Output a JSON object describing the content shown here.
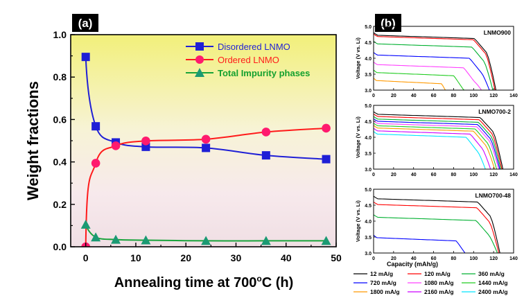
{
  "chart_data": [
    {
      "panel_label": "(a)",
      "type": "line",
      "title": "",
      "xlabel": "Annealing time at 700°C (h)",
      "xlabel_parts": [
        "Annealing time at 700",
        "o",
        "C (h)"
      ],
      "ylabel": "Weight fractions",
      "xlim": [
        -3,
        50
      ],
      "ylim": [
        0,
        1.0
      ],
      "xticks": [
        "0",
        "10",
        "20",
        "30",
        "40",
        "50"
      ],
      "yticks": [
        "0.0",
        "0.2",
        "0.4",
        "0.6",
        "0.8",
        "1.0"
      ],
      "legend_position": "top-right",
      "series": [
        {
          "name": "Disordered LNMO",
          "color": "#1f1fd6",
          "marker": "square",
          "x": [
            0,
            2,
            6,
            12,
            24,
            36,
            48
          ],
          "values": [
            0.895,
            0.568,
            0.492,
            0.471,
            0.466,
            0.431,
            0.413
          ]
        },
        {
          "name": "Ordered LNMO",
          "color": "#ff1a1a",
          "marker": "circle",
          "x": [
            0,
            2,
            6,
            12,
            24,
            36,
            48
          ],
          "values": [
            0.0,
            0.394,
            0.476,
            0.499,
            0.507,
            0.541,
            0.559
          ]
        },
        {
          "name": "Total Impurity phases",
          "color": "#1b9a73",
          "marker": "triangle",
          "x": [
            0,
            2,
            6,
            12,
            24,
            36,
            48
          ],
          "values": [
            0.105,
            0.045,
            0.034,
            0.031,
            0.028,
            0.028,
            0.028
          ]
        }
      ]
    },
    {
      "panel_label": "(b)",
      "type": "line",
      "xlabel": "Capacity (mAh/g)",
      "ylabel": "Voltage (V vs. Li)",
      "xlim": [
        0,
        140
      ],
      "ylim": [
        3.0,
        5.0
      ],
      "xticks": [
        "0",
        "20",
        "40",
        "60",
        "80",
        "100",
        "120",
        "140"
      ],
      "yticks": [
        "3.0",
        "3.5",
        "4.0",
        "4.5",
        "5.0"
      ],
      "legend": [
        {
          "label": "12 mA/g",
          "color": "#000000"
        },
        {
          "label": "120 mA/g",
          "color": "#ff0000"
        },
        {
          "label": "360 mA/g",
          "color": "#00b030"
        },
        {
          "label": "720 mA/g",
          "color": "#0000ff"
        },
        {
          "label": "1080 mA/g",
          "color": "#ff40ff"
        },
        {
          "label": "1440 mA/g",
          "color": "#22cc22"
        },
        {
          "label": "1800 mA/g",
          "color": "#ff9900"
        },
        {
          "label": "2160 mA/g",
          "color": "#cc00ff"
        },
        {
          "label": "2400 mA/g",
          "color": "#00e5ff"
        }
      ],
      "subplots": [
        {
          "name": "LNMO900",
          "curves": [
            {
              "color": "#000000",
              "plateau": 4.72,
              "endCap": 123
            },
            {
              "color": "#ff0000",
              "plateau": 4.68,
              "endCap": 122
            },
            {
              "color": "#00b030",
              "plateau": 4.45,
              "endCap": 120
            },
            {
              "color": "#0000ff",
              "plateau": 4.1,
              "endCap": 117
            },
            {
              "color": "#ff40ff",
              "plateau": 3.8,
              "endCap": 110
            },
            {
              "color": "#22cc22",
              "plateau": 3.55,
              "endCap": 98
            },
            {
              "color": "#ff9900",
              "plateau": 3.3,
              "endCap": 83
            }
          ]
        },
        {
          "name": "LNMO700-2",
          "curves": [
            {
              "color": "#000000",
              "plateau": 4.72,
              "endCap": 130
            },
            {
              "color": "#ff0000",
              "plateau": 4.65,
              "endCap": 129
            },
            {
              "color": "#00b030",
              "plateau": 4.57,
              "endCap": 128
            },
            {
              "color": "#0000ff",
              "plateau": 4.5,
              "endCap": 127
            },
            {
              "color": "#ff40ff",
              "plateau": 4.43,
              "endCap": 126
            },
            {
              "color": "#22cc22",
              "plateau": 4.36,
              "endCap": 124
            },
            {
              "color": "#ff9900",
              "plateau": 4.29,
              "endCap": 122
            },
            {
              "color": "#cc00ff",
              "plateau": 4.2,
              "endCap": 118
            },
            {
              "color": "#00e5ff",
              "plateau": 4.1,
              "endCap": 113
            }
          ]
        },
        {
          "name": "LNMO700-48",
          "curves": [
            {
              "color": "#000000",
              "plateau": 4.7,
              "endCap": 127
            },
            {
              "color": "#ff0000",
              "plateau": 4.52,
              "endCap": 126
            },
            {
              "color": "#00b030",
              "plateau": 4.12,
              "endCap": 125
            },
            {
              "color": "#0000ff",
              "plateau": 3.48,
              "endCap": 101
            }
          ]
        }
      ]
    }
  ]
}
